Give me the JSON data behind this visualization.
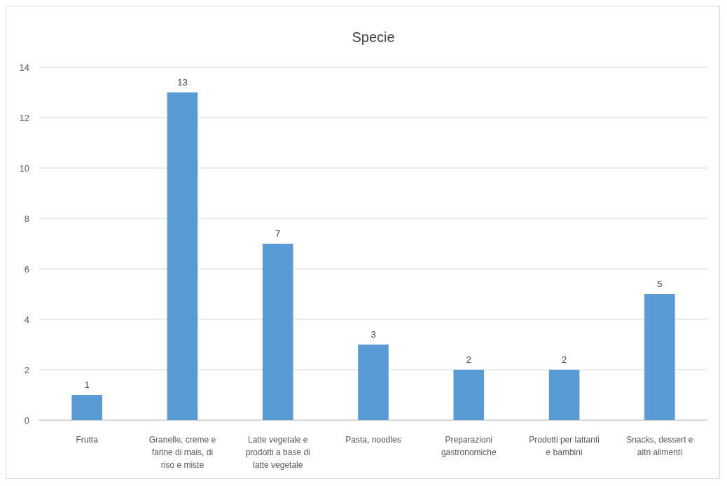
{
  "chart_data": {
    "type": "bar",
    "title": "Specie",
    "categories": [
      "Frutta",
      "Granelle, creme e farine di mais, di riso e miste",
      "Latte vegetale e prodotti a base di latte vegetale",
      "Pasta, noodles",
      "Preparazioni gastronomiche",
      "Prodotti per lattanti e bambini",
      "Snacks, dessert e altri alimenti"
    ],
    "values": [
      1,
      13,
      7,
      3,
      2,
      2,
      5
    ],
    "color": "#5b9bd5",
    "ylim": [
      0,
      14
    ],
    "yticks": [
      0,
      2,
      4,
      6,
      8,
      10,
      12,
      14
    ],
    "grid": "y",
    "data_labels": true
  }
}
